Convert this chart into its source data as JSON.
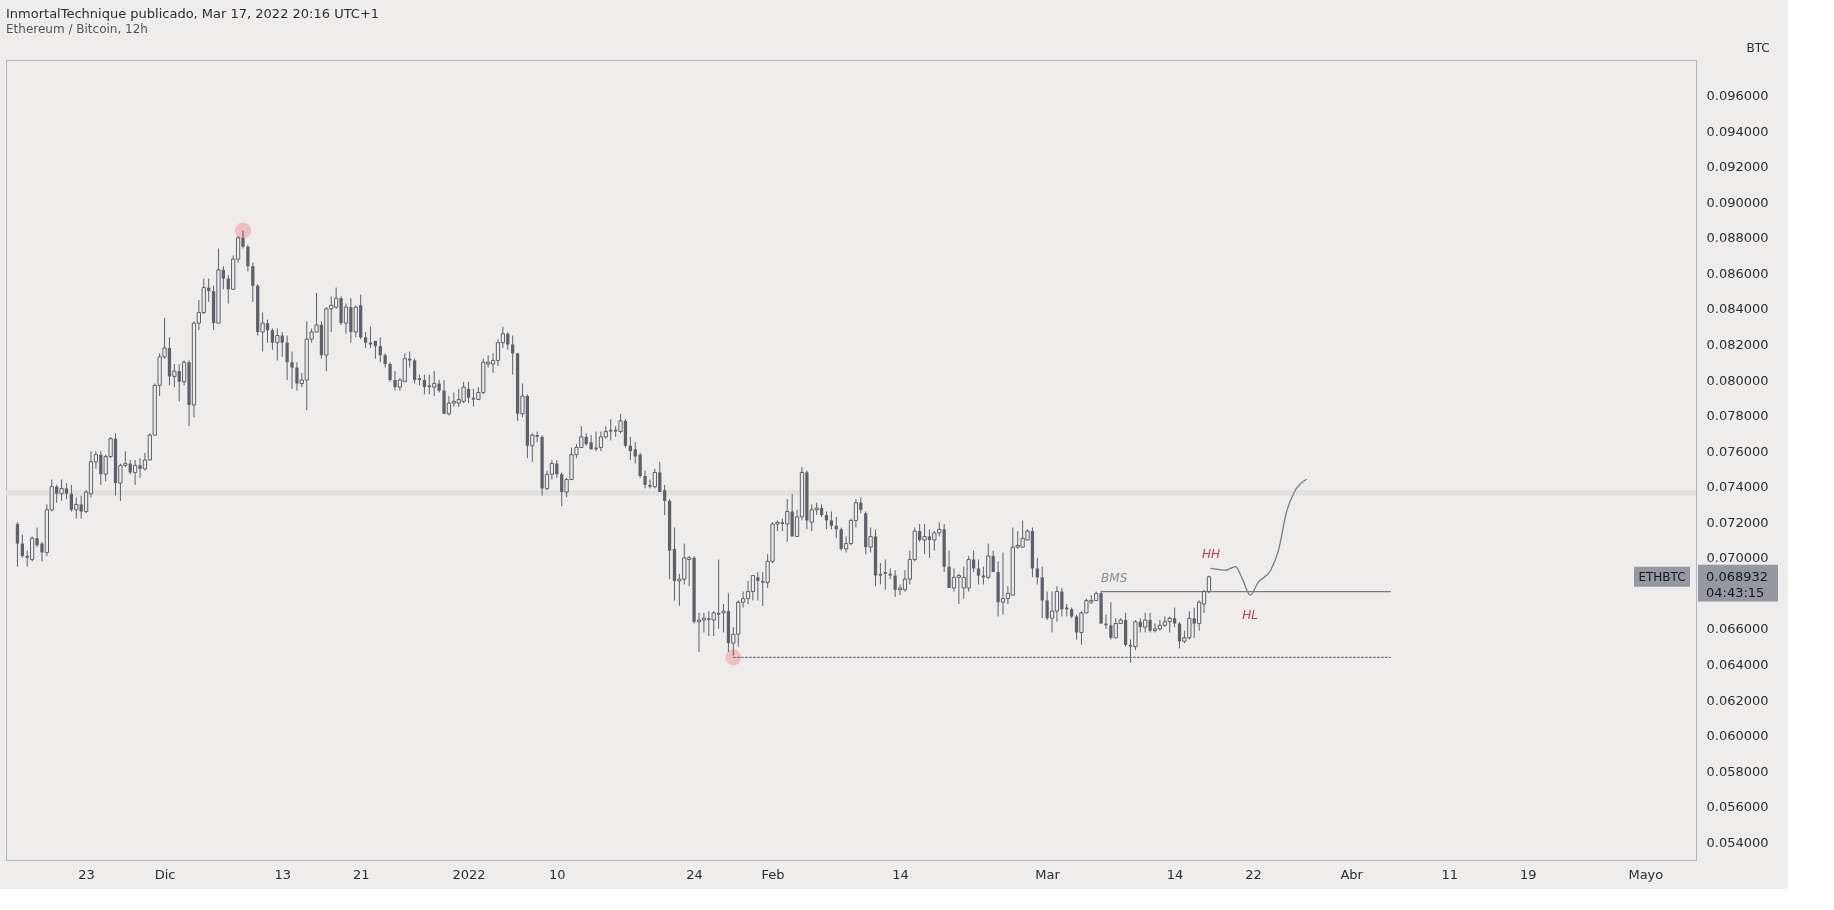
{
  "chart_data": {
    "type": "candlestick",
    "title": "InmortalTechnique publicado, Mar 17, 2022 20:16 UTC+1",
    "subtitle": "Ethereum / Bitcoin, 12h",
    "ylabel": "BTC",
    "color": "#5d606b",
    "grid": false,
    "xlim": [
      "2021-11-14T20:00",
      "2022-05-06T04:00"
    ],
    "xticks": [
      {
        "value": "2021-11-23",
        "label": "23"
      },
      {
        "value": "2021-12-01",
        "label": "Dic"
      },
      {
        "value": "2021-12-13",
        "label": "13"
      },
      {
        "value": "2021-12-21",
        "label": "21"
      },
      {
        "value": "2022-01-01",
        "label": "2022"
      },
      {
        "value": "2022-01-10",
        "label": "10"
      },
      {
        "value": "2022-01-24",
        "label": "24"
      },
      {
        "value": "2022-02-01",
        "label": "Feb"
      },
      {
        "value": "2022-02-14",
        "label": "14"
      },
      {
        "value": "2022-03-01",
        "label": "Mar"
      },
      {
        "value": "2022-03-14",
        "label": "14"
      },
      {
        "value": "2022-03-22",
        "label": "22"
      },
      {
        "value": "2022-04-01",
        "label": "Abr"
      },
      {
        "value": "2022-04-11",
        "label": "11"
      },
      {
        "value": "2022-04-19",
        "label": "19"
      },
      {
        "value": "2022-05-01",
        "label": "Mayo"
      }
    ],
    "ylim": [
      0.053,
      0.098
    ],
    "yticks": [
      {
        "value": 0.054,
        "label": "0.054000"
      },
      {
        "value": 0.056,
        "label": "0.056000"
      },
      {
        "value": 0.058,
        "label": "0.058000"
      },
      {
        "value": 0.06,
        "label": "0.060000"
      },
      {
        "value": 0.062,
        "label": "0.062000"
      },
      {
        "value": 0.064,
        "label": "0.064000"
      },
      {
        "value": 0.066,
        "label": "0.066000"
      },
      {
        "value": 0.07,
        "label": "0.070000"
      },
      {
        "value": 0.072,
        "label": "0.072000"
      },
      {
        "value": 0.074,
        "label": "0.074000"
      },
      {
        "value": 0.076,
        "label": "0.076000"
      },
      {
        "value": 0.078,
        "label": "0.078000"
      },
      {
        "value": 0.08,
        "label": "0.080000"
      },
      {
        "value": 0.082,
        "label": "0.082000"
      },
      {
        "value": 0.084,
        "label": "0.084000"
      },
      {
        "value": 0.086,
        "label": "0.086000"
      },
      {
        "value": 0.088,
        "label": "0.088000"
      },
      {
        "value": 0.09,
        "label": "0.090000"
      },
      {
        "value": 0.092,
        "label": "0.092000"
      },
      {
        "value": 0.094,
        "label": "0.094000"
      },
      {
        "value": 0.096,
        "label": "0.096000"
      }
    ],
    "bands": [
      {
        "axis": "y",
        "from": 0.0735,
        "to": 0.0738,
        "color": "#e2e1e0"
      }
    ],
    "annotations": [
      {
        "text": "BMS",
        "x": "2022-03-06T12:00",
        "y": 0.0681
      },
      {
        "text": "HH",
        "x": "2022-03-17T17:00",
        "y": 0.0694
      },
      {
        "text": "HL",
        "x": "2022-03-21T17:00",
        "y": 0.0679
      },
      "ETHBTC",
      "0.068932",
      "04:43:15"
    ],
    "series": [
      {
        "type": "scatter",
        "marker": "circle",
        "color": "#f2b3b3",
        "x": [
          "2021-12-09T00:00",
          "2022-01-28T00:00"
        ],
        "values": [
          0.0884,
          0.0644
        ]
      },
      {
        "type": "line",
        "color": "#787b86",
        "x": [
          "2022-03-06T12:00",
          "2022-04-05T00:00"
        ],
        "values": [
          0.0681,
          0.0681
        ]
      },
      {
        "type": "line",
        "color": "#787b86",
        "line_style": "dotted",
        "x": [
          "2022-01-28T00:00",
          "2022-04-05T00:00"
        ],
        "values": [
          0.0644,
          0.0644
        ]
      },
      {
        "type": "line",
        "color": "#787b86",
        "x": [
          "2022-03-17T17:00",
          "2022-03-19T05:00",
          "2022-03-20T05:00",
          "2022-03-20T22:00",
          "2022-03-21T17:00",
          "2022-03-22T12:00",
          "2022-03-23T19:00",
          "2022-03-24T14:00",
          "2022-03-25T10:00",
          "2022-03-26T05:00",
          "2022-03-27T10:00"
        ],
        "values": [
          0.0694,
          0.0693,
          0.0695,
          0.0688,
          0.0679,
          0.0686,
          0.0693,
          0.0704,
          0.0726,
          0.0737,
          0.0744
        ]
      }
    ],
    "x": [
      "2021-11-16T00:00",
      "2021-11-16T12:00",
      "2021-11-17T00:00",
      "2021-11-17T12:00",
      "2021-11-18T00:00",
      "2021-11-18T12:00",
      "2021-11-19T00:00",
      "2021-11-19T12:00",
      "2021-11-20T00:00",
      "2021-11-20T12:00",
      "2021-11-21T00:00",
      "2021-11-21T12:00",
      "2021-11-22T00:00",
      "2021-11-22T12:00",
      "2021-11-23T00:00",
      "2021-11-23T12:00",
      "2021-11-24T00:00",
      "2021-11-24T12:00",
      "2021-11-25T00:00",
      "2021-11-25T12:00",
      "2021-11-26T00:00",
      "2021-11-26T12:00",
      "2021-11-27T00:00",
      "2021-11-27T12:00",
      "2021-11-28T00:00",
      "2021-11-28T12:00",
      "2021-11-29T00:00",
      "2021-11-29T12:00",
      "2021-11-30T00:00",
      "2021-11-30T12:00",
      "2021-12-01T00:00",
      "2021-12-01T12:00",
      "2021-12-02T00:00",
      "2021-12-02T12:00",
      "2021-12-03T00:00",
      "2021-12-03T12:00",
      "2021-12-04T00:00",
      "2021-12-04T12:00",
      "2021-12-05T00:00",
      "2021-12-05T12:00",
      "2021-12-06T00:00",
      "2021-12-06T12:00",
      "2021-12-07T00:00",
      "2021-12-07T12:00",
      "2021-12-08T00:00",
      "2021-12-08T12:00",
      "2021-12-09T00:00",
      "2021-12-09T12:00",
      "2021-12-10T00:00",
      "2021-12-10T12:00",
      "2021-12-11T00:00",
      "2021-12-11T12:00",
      "2021-12-12T00:00",
      "2021-12-12T12:00",
      "2021-12-13T00:00",
      "2021-12-13T12:00",
      "2021-12-14T00:00",
      "2021-12-14T12:00",
      "2021-12-15T00:00",
      "2021-12-15T12:00",
      "2021-12-16T00:00",
      "2021-12-16T12:00",
      "2021-12-17T00:00",
      "2021-12-17T12:00",
      "2021-12-18T00:00",
      "2021-12-18T12:00",
      "2021-12-19T00:00",
      "2021-12-19T12:00",
      "2021-12-20T00:00",
      "2021-12-20T12:00",
      "2021-12-21T00:00",
      "2021-12-21T12:00",
      "2021-12-22T00:00",
      "2021-12-22T12:00",
      "2021-12-23T00:00",
      "2021-12-23T12:00",
      "2021-12-24T00:00",
      "2021-12-24T12:00",
      "2021-12-25T00:00",
      "2021-12-25T12:00",
      "2021-12-26T00:00",
      "2021-12-26T12:00",
      "2021-12-27T00:00",
      "2021-12-27T12:00",
      "2021-12-28T00:00",
      "2021-12-28T12:00",
      "2021-12-29T00:00",
      "2021-12-29T12:00",
      "2021-12-30T00:00",
      "2021-12-30T12:00",
      "2021-12-31T00:00",
      "2021-12-31T12:00",
      "2022-01-01T00:00",
      "2022-01-01T12:00",
      "2022-01-02T00:00",
      "2022-01-02T12:00",
      "2022-01-03T00:00",
      "2022-01-03T12:00",
      "2022-01-04T00:00",
      "2022-01-04T12:00",
      "2022-01-05T00:00",
      "2022-01-05T12:00",
      "2022-01-06T00:00",
      "2022-01-06T12:00",
      "2022-01-07T00:00",
      "2022-01-07T12:00",
      "2022-01-08T00:00",
      "2022-01-08T12:00",
      "2022-01-09T00:00",
      "2022-01-09T12:00",
      "2022-01-10T00:00",
      "2022-01-10T12:00",
      "2022-01-11T00:00",
      "2022-01-11T12:00",
      "2022-01-12T00:00",
      "2022-01-12T12:00",
      "2022-01-13T00:00",
      "2022-01-13T12:00",
      "2022-01-14T00:00",
      "2022-01-14T12:00",
      "2022-01-15T00:00",
      "2022-01-15T12:00",
      "2022-01-16T00:00",
      "2022-01-16T12:00",
      "2022-01-17T00:00",
      "2022-01-17T12:00",
      "2022-01-18T00:00",
      "2022-01-18T12:00",
      "2022-01-19T00:00",
      "2022-01-19T12:00",
      "2022-01-20T00:00",
      "2022-01-20T12:00",
      "2022-01-21T00:00",
      "2022-01-21T12:00",
      "2022-01-22T00:00",
      "2022-01-22T12:00",
      "2022-01-23T00:00",
      "2022-01-23T12:00",
      "2022-01-24T00:00",
      "2022-01-24T12:00",
      "2022-01-25T00:00",
      "2022-01-25T12:00",
      "2022-01-26T00:00",
      "2022-01-26T12:00",
      "2022-01-27T00:00",
      "2022-01-27T12:00",
      "2022-01-28T00:00",
      "2022-01-28T12:00",
      "2022-01-29T00:00",
      "2022-01-29T12:00",
      "2022-01-30T00:00",
      "2022-01-30T12:00",
      "2022-01-31T00:00",
      "2022-01-31T12:00",
      "2022-02-01T00:00",
      "2022-02-01T12:00",
      "2022-02-02T00:00",
      "2022-02-02T12:00",
      "2022-02-03T00:00",
      "2022-02-03T12:00",
      "2022-02-04T00:00",
      "2022-02-04T12:00",
      "2022-02-05T00:00",
      "2022-02-05T12:00",
      "2022-02-06T00:00",
      "2022-02-06T12:00",
      "2022-02-07T00:00",
      "2022-02-07T12:00",
      "2022-02-08T00:00",
      "2022-02-08T12:00",
      "2022-02-09T00:00",
      "2022-02-09T12:00",
      "2022-02-10T00:00",
      "2022-02-10T12:00",
      "2022-02-11T00:00",
      "2022-02-11T12:00",
      "2022-02-12T00:00",
      "2022-02-12T12:00",
      "2022-02-13T00:00",
      "2022-02-13T12:00",
      "2022-02-14T00:00",
      "2022-02-14T12:00",
      "2022-02-15T00:00",
      "2022-02-15T12:00",
      "2022-02-16T00:00",
      "2022-02-16T12:00",
      "2022-02-17T00:00",
      "2022-02-17T12:00",
      "2022-02-18T00:00",
      "2022-02-18T12:00",
      "2022-02-19T00:00",
      "2022-02-19T12:00",
      "2022-02-20T00:00",
      "2022-02-20T12:00",
      "2022-02-21T00:00",
      "2022-02-21T12:00",
      "2022-02-22T00:00",
      "2022-02-22T12:00",
      "2022-02-23T00:00",
      "2022-02-23T12:00",
      "2022-02-24T00:00",
      "2022-02-24T12:00",
      "2022-02-25T00:00",
      "2022-02-25T12:00",
      "2022-02-26T00:00",
      "2022-02-26T12:00",
      "2022-02-27T00:00",
      "2022-02-27T12:00",
      "2022-02-28T00:00",
      "2022-02-28T12:00",
      "2022-03-01T00:00",
      "2022-03-01T12:00",
      "2022-03-02T00:00",
      "2022-03-02T12:00",
      "2022-03-03T00:00",
      "2022-03-03T12:00",
      "2022-03-04T00:00",
      "2022-03-04T12:00",
      "2022-03-05T00:00",
      "2022-03-05T12:00",
      "2022-03-06T00:00",
      "2022-03-06T12:00",
      "2022-03-07T00:00",
      "2022-03-07T12:00",
      "2022-03-08T00:00",
      "2022-03-08T12:00",
      "2022-03-09T00:00",
      "2022-03-09T12:00",
      "2022-03-10T00:00",
      "2022-03-10T12:00",
      "2022-03-11T00:00",
      "2022-03-11T12:00",
      "2022-03-12T00:00",
      "2022-03-12T12:00",
      "2022-03-13T00:00",
      "2022-03-13T12:00",
      "2022-03-14T00:00",
      "2022-03-14T12:00",
      "2022-03-15T00:00",
      "2022-03-15T12:00",
      "2022-03-16T00:00",
      "2022-03-16T12:00",
      "2022-03-17T00:00",
      "2022-03-17T12:00"
    ],
    "ohlc": [
      [
        0.0719,
        0.072,
        0.0695,
        0.0708
      ],
      [
        0.0708,
        0.0713,
        0.07,
        0.0701
      ],
      [
        0.0701,
        0.0704,
        0.0695,
        0.07
      ],
      [
        0.0699,
        0.0712,
        0.0698,
        0.0711
      ],
      [
        0.0711,
        0.0717,
        0.0706,
        0.0707
      ],
      [
        0.0708,
        0.0709,
        0.0698,
        0.0703
      ],
      [
        0.0703,
        0.073,
        0.0701,
        0.0727
      ],
      [
        0.0727,
        0.0744,
        0.0726,
        0.074
      ],
      [
        0.074,
        0.0741,
        0.0731,
        0.0736
      ],
      [
        0.0736,
        0.0744,
        0.0732,
        0.0739
      ],
      [
        0.0739,
        0.0742,
        0.0733,
        0.0736
      ],
      [
        0.0736,
        0.0741,
        0.0726,
        0.0727
      ],
      [
        0.0727,
        0.0734,
        0.0722,
        0.073
      ],
      [
        0.073,
        0.0735,
        0.0722,
        0.0726
      ],
      [
        0.0726,
        0.0738,
        0.0725,
        0.0737
      ],
      [
        0.0736,
        0.076,
        0.0734,
        0.0754
      ],
      [
        0.0754,
        0.076,
        0.075,
        0.0758
      ],
      [
        0.0758,
        0.076,
        0.0741,
        0.0747
      ],
      [
        0.0747,
        0.0758,
        0.0743,
        0.0757
      ],
      [
        0.0757,
        0.0768,
        0.0756,
        0.0767
      ],
      [
        0.0767,
        0.077,
        0.0735,
        0.0742
      ],
      [
        0.0742,
        0.0753,
        0.0732,
        0.0752
      ],
      [
        0.0752,
        0.076,
        0.0751,
        0.0753
      ],
      [
        0.0753,
        0.0755,
        0.0747,
        0.0748
      ],
      [
        0.0748,
        0.0755,
        0.0741,
        0.0752
      ],
      [
        0.0752,
        0.0756,
        0.0745,
        0.075
      ],
      [
        0.075,
        0.0759,
        0.0749,
        0.0755
      ],
      [
        0.0755,
        0.077,
        0.0755,
        0.0769
      ],
      [
        0.0769,
        0.0798,
        0.0769,
        0.0797
      ],
      [
        0.0797,
        0.0815,
        0.0791,
        0.0813
      ],
      [
        0.0813,
        0.0835,
        0.0812,
        0.0818
      ],
      [
        0.0818,
        0.0824,
        0.0797,
        0.0802
      ],
      [
        0.0802,
        0.0809,
        0.0796,
        0.0805
      ],
      [
        0.0805,
        0.0809,
        0.0788,
        0.0799
      ],
      [
        0.0799,
        0.0811,
        0.0797,
        0.081
      ],
      [
        0.081,
        0.0811,
        0.0774,
        0.0786
      ],
      [
        0.0786,
        0.0833,
        0.0779,
        0.0832
      ],
      [
        0.0832,
        0.0845,
        0.0828,
        0.0838
      ],
      [
        0.0838,
        0.0857,
        0.0837,
        0.0852
      ],
      [
        0.0852,
        0.0857,
        0.0844,
        0.085
      ],
      [
        0.085,
        0.0853,
        0.0828,
        0.0832
      ],
      [
        0.0832,
        0.0874,
        0.0832,
        0.0862
      ],
      [
        0.0862,
        0.0864,
        0.0851,
        0.0857
      ],
      [
        0.0857,
        0.0859,
        0.0843,
        0.0851
      ],
      [
        0.0851,
        0.087,
        0.0851,
        0.0868
      ],
      [
        0.0868,
        0.0881,
        0.0866,
        0.088
      ],
      [
        0.088,
        0.0884,
        0.0874,
        0.0875
      ],
      [
        0.0875,
        0.0876,
        0.0861,
        0.0864
      ],
      [
        0.0864,
        0.0866,
        0.0844,
        0.0853
      ],
      [
        0.0853,
        0.0854,
        0.0825,
        0.0827
      ],
      [
        0.0827,
        0.0838,
        0.0816,
        0.0832
      ],
      [
        0.0832,
        0.0834,
        0.0821,
        0.0828
      ],
      [
        0.0828,
        0.0829,
        0.0817,
        0.0821
      ],
      [
        0.0821,
        0.0829,
        0.0811,
        0.0825
      ],
      [
        0.0825,
        0.0827,
        0.0813,
        0.0821
      ],
      [
        0.0821,
        0.0825,
        0.08,
        0.081
      ],
      [
        0.081,
        0.0816,
        0.0795,
        0.0807
      ],
      [
        0.0807,
        0.081,
        0.0794,
        0.0798
      ],
      [
        0.0798,
        0.0804,
        0.0796,
        0.08
      ],
      [
        0.08,
        0.0833,
        0.0783,
        0.0823
      ],
      [
        0.0823,
        0.0829,
        0.0821,
        0.0827
      ],
      [
        0.0827,
        0.0849,
        0.0827,
        0.0831
      ],
      [
        0.0831,
        0.0833,
        0.0812,
        0.0814
      ],
      [
        0.0814,
        0.0841,
        0.0805,
        0.084
      ],
      [
        0.084,
        0.0847,
        0.0827,
        0.0842
      ],
      [
        0.0841,
        0.0852,
        0.084,
        0.0846
      ],
      [
        0.0846,
        0.0847,
        0.0831,
        0.0832
      ],
      [
        0.0832,
        0.0843,
        0.0826,
        0.0841
      ],
      [
        0.0841,
        0.0846,
        0.0821,
        0.0827
      ],
      [
        0.0827,
        0.0842,
        0.0824,
        0.0841
      ],
      [
        0.0842,
        0.0848,
        0.0823,
        0.0824
      ],
      [
        0.0824,
        0.0827,
        0.0818,
        0.0821
      ],
      [
        0.0821,
        0.083,
        0.0818,
        0.082
      ],
      [
        0.0822,
        0.0822,
        0.0812,
        0.0819
      ],
      [
        0.0819,
        0.0824,
        0.081,
        0.0814
      ],
      [
        0.0814,
        0.0815,
        0.0807,
        0.0809
      ],
      [
        0.0809,
        0.081,
        0.0799,
        0.08
      ],
      [
        0.08,
        0.0805,
        0.0794,
        0.0796
      ],
      [
        0.0796,
        0.0801,
        0.0794,
        0.08
      ],
      [
        0.0799,
        0.0815,
        0.0799,
        0.0812
      ],
      [
        0.0812,
        0.0816,
        0.0807,
        0.0811
      ],
      [
        0.0811,
        0.0812,
        0.0798,
        0.08
      ],
      [
        0.0801,
        0.0803,
        0.0797,
        0.08
      ],
      [
        0.08,
        0.0803,
        0.0792,
        0.0796
      ],
      [
        0.0797,
        0.0803,
        0.0792,
        0.0796
      ],
      [
        0.0796,
        0.0805,
        0.0791,
        0.0798
      ],
      [
        0.0798,
        0.08,
        0.0793,
        0.0794
      ],
      [
        0.0794,
        0.08,
        0.0781,
        0.0781
      ],
      [
        0.0781,
        0.0791,
        0.078,
        0.0787
      ],
      [
        0.0787,
        0.0793,
        0.0785,
        0.0788
      ],
      [
        0.0787,
        0.0795,
        0.0785,
        0.0789
      ],
      [
        0.0788,
        0.0799,
        0.0787,
        0.0796
      ],
      [
        0.0795,
        0.0799,
        0.0787,
        0.079
      ],
      [
        0.079,
        0.0795,
        0.0785,
        0.0789
      ],
      [
        0.0789,
        0.0796,
        0.0789,
        0.0793
      ],
      [
        0.0793,
        0.0812,
        0.0792,
        0.081
      ],
      [
        0.0809,
        0.0814,
        0.0807,
        0.081
      ],
      [
        0.0809,
        0.0815,
        0.0804,
        0.0811
      ],
      [
        0.0811,
        0.0823,
        0.0808,
        0.0821
      ],
      [
        0.0821,
        0.083,
        0.0818,
        0.0826
      ],
      [
        0.0826,
        0.0827,
        0.0817,
        0.082
      ],
      [
        0.082,
        0.0825,
        0.0803,
        0.0815
      ],
      [
        0.0815,
        0.0815,
        0.0777,
        0.0781
      ],
      [
        0.0781,
        0.0798,
        0.0779,
        0.0791
      ],
      [
        0.0791,
        0.0792,
        0.0756,
        0.0763
      ],
      [
        0.0763,
        0.077,
        0.0754,
        0.0769
      ],
      [
        0.0769,
        0.0771,
        0.0765,
        0.0768
      ],
      [
        0.0768,
        0.0769,
        0.0735,
        0.0739
      ],
      [
        0.0739,
        0.0749,
        0.0738,
        0.0747
      ],
      [
        0.0747,
        0.0755,
        0.0744,
        0.0753
      ],
      [
        0.0753,
        0.0755,
        0.0745,
        0.0747
      ],
      [
        0.0747,
        0.0748,
        0.0729,
        0.0737
      ],
      [
        0.0737,
        0.0745,
        0.0734,
        0.0744
      ],
      [
        0.0744,
        0.0762,
        0.0744,
        0.0758
      ],
      [
        0.0758,
        0.0764,
        0.0756,
        0.0762
      ],
      [
        0.0762,
        0.0774,
        0.0762,
        0.0768
      ],
      [
        0.0768,
        0.077,
        0.0763,
        0.0764
      ],
      [
        0.0765,
        0.0769,
        0.0761,
        0.0761
      ],
      [
        0.0762,
        0.0771,
        0.076,
        0.0761
      ],
      [
        0.0762,
        0.0771,
        0.076,
        0.0768
      ],
      [
        0.0768,
        0.0774,
        0.0767,
        0.0771
      ],
      [
        0.0772,
        0.0778,
        0.0766,
        0.0771
      ],
      [
        0.0772,
        0.0774,
        0.0768,
        0.0771
      ],
      [
        0.0771,
        0.0781,
        0.077,
        0.0777
      ],
      [
        0.0777,
        0.0778,
        0.0762,
        0.0763
      ],
      [
        0.0763,
        0.0768,
        0.0755,
        0.076
      ],
      [
        0.0761,
        0.0765,
        0.0753,
        0.0757
      ],
      [
        0.0758,
        0.0759,
        0.0745,
        0.0746
      ],
      [
        0.0746,
        0.0749,
        0.0739,
        0.0741
      ],
      [
        0.0741,
        0.0744,
        0.0739,
        0.074
      ],
      [
        0.074,
        0.075,
        0.0739,
        0.0748
      ],
      [
        0.0748,
        0.0754,
        0.0737,
        0.0737
      ],
      [
        0.0738,
        0.0741,
        0.0724,
        0.0732
      ],
      [
        0.0732,
        0.0733,
        0.0688,
        0.0704
      ],
      [
        0.0705,
        0.0717,
        0.0676,
        0.0687
      ],
      [
        0.0687,
        0.0691,
        0.0673,
        0.0688
      ],
      [
        0.0688,
        0.0708,
        0.0685,
        0.07
      ],
      [
        0.0699,
        0.0701,
        0.0684,
        0.07
      ],
      [
        0.07,
        0.0701,
        0.0663,
        0.0664
      ],
      [
        0.0664,
        0.0669,
        0.0647,
        0.0665
      ],
      [
        0.0665,
        0.0669,
        0.0658,
        0.0666
      ],
      [
        0.0666,
        0.067,
        0.0656,
        0.0665
      ],
      [
        0.0665,
        0.067,
        0.0656,
        0.0669
      ],
      [
        0.0669,
        0.0699,
        0.066,
        0.0668
      ],
      [
        0.0669,
        0.0674,
        0.0658,
        0.067
      ],
      [
        0.067,
        0.068,
        0.0647,
        0.0652
      ],
      [
        0.0652,
        0.0661,
        0.0645,
        0.0657
      ],
      [
        0.0657,
        0.0676,
        0.065,
        0.0675
      ],
      [
        0.0675,
        0.0681,
        0.0672,
        0.0677
      ],
      [
        0.0677,
        0.0687,
        0.0674,
        0.0681
      ],
      [
        0.0681,
        0.069,
        0.0676,
        0.069
      ],
      [
        0.0689,
        0.0692,
        0.0676,
        0.0687
      ],
      [
        0.0687,
        0.0692,
        0.0673,
        0.0686
      ],
      [
        0.0686,
        0.0702,
        0.0683,
        0.0698
      ],
      [
        0.0698,
        0.072,
        0.0697,
        0.0719
      ],
      [
        0.0719,
        0.0721,
        0.0715,
        0.072
      ],
      [
        0.072,
        0.0722,
        0.0715,
        0.0719
      ],
      [
        0.0719,
        0.0733,
        0.0709,
        0.0726
      ],
      [
        0.0726,
        0.0736,
        0.0712,
        0.0712
      ],
      [
        0.0712,
        0.0727,
        0.0712,
        0.0723
      ],
      [
        0.0723,
        0.0751,
        0.0721,
        0.0748
      ],
      [
        0.0748,
        0.0749,
        0.0716,
        0.0721
      ],
      [
        0.072,
        0.073,
        0.0715,
        0.0727
      ],
      [
        0.0727,
        0.0731,
        0.0724,
        0.0728
      ],
      [
        0.0728,
        0.073,
        0.0723,
        0.0724
      ],
      [
        0.0724,
        0.0726,
        0.0716,
        0.0721
      ],
      [
        0.0721,
        0.0726,
        0.0716,
        0.0718
      ],
      [
        0.0718,
        0.0723,
        0.0711,
        0.0716
      ],
      [
        0.0716,
        0.0717,
        0.0704,
        0.0705
      ],
      [
        0.0705,
        0.0712,
        0.0703,
        0.0708
      ],
      [
        0.0708,
        0.0722,
        0.0707,
        0.0721
      ],
      [
        0.0721,
        0.0733,
        0.0717,
        0.0731
      ],
      [
        0.0731,
        0.0734,
        0.0725,
        0.0727
      ],
      [
        0.0725,
        0.0726,
        0.0702,
        0.0706
      ],
      [
        0.0706,
        0.0717,
        0.0703,
        0.0712
      ],
      [
        0.0712,
        0.0716,
        0.0684,
        0.069
      ],
      [
        0.0691,
        0.0697,
        0.0685,
        0.069
      ],
      [
        0.0692,
        0.0699,
        0.0682,
        0.0691
      ],
      [
        0.0691,
        0.0694,
        0.0688,
        0.069
      ],
      [
        0.069,
        0.0693,
        0.0678,
        0.0682
      ],
      [
        0.0682,
        0.0685,
        0.0679,
        0.0683
      ],
      [
        0.0682,
        0.0693,
        0.0681,
        0.0688
      ],
      [
        0.0688,
        0.0704,
        0.0685,
        0.0699
      ],
      [
        0.0699,
        0.0717,
        0.0698,
        0.0715
      ],
      [
        0.0715,
        0.0719,
        0.0709,
        0.071
      ],
      [
        0.071,
        0.0719,
        0.0702,
        0.0712
      ],
      [
        0.0712,
        0.0716,
        0.07,
        0.071
      ],
      [
        0.071,
        0.0715,
        0.0704,
        0.0714
      ],
      [
        0.0714,
        0.072,
        0.0712,
        0.0716
      ],
      [
        0.0716,
        0.0719,
        0.0692,
        0.0695
      ],
      [
        0.0695,
        0.0704,
        0.0683,
        0.0683
      ],
      [
        0.0683,
        0.0694,
        0.0681,
        0.0689
      ],
      [
        0.0689,
        0.0691,
        0.0674,
        0.069
      ],
      [
        0.0683,
        0.0695,
        0.0677,
        0.0689
      ],
      [
        0.0683,
        0.0701,
        0.0681,
        0.0699
      ],
      [
        0.0699,
        0.0704,
        0.0692,
        0.0694
      ],
      [
        0.0694,
        0.0699,
        0.0685,
        0.069
      ],
      [
        0.069,
        0.0695,
        0.0685,
        0.0689
      ],
      [
        0.0689,
        0.0708,
        0.0688,
        0.0701
      ],
      [
        0.0701,
        0.0704,
        0.0692,
        0.0692
      ],
      [
        0.0692,
        0.0698,
        0.0667,
        0.0675
      ],
      [
        0.0675,
        0.0703,
        0.0668,
        0.0677
      ],
      [
        0.0677,
        0.0684,
        0.0674,
        0.068
      ],
      [
        0.0679,
        0.0717,
        0.0679,
        0.0706
      ],
      [
        0.0706,
        0.0715,
        0.0705,
        0.0707
      ],
      [
        0.0706,
        0.0721,
        0.0706,
        0.0711
      ],
      [
        0.071,
        0.0716,
        0.071,
        0.0715
      ],
      [
        0.0715,
        0.0717,
        0.0689,
        0.0694
      ],
      [
        0.0694,
        0.07,
        0.0685,
        0.0689
      ],
      [
        0.0689,
        0.0695,
        0.0666,
        0.0676
      ],
      [
        0.0676,
        0.0681,
        0.0665,
        0.0666
      ],
      [
        0.0666,
        0.0681,
        0.0658,
        0.067
      ],
      [
        0.067,
        0.0684,
        0.0664,
        0.0681
      ],
      [
        0.0681,
        0.0683,
        0.0667,
        0.0671
      ],
      [
        0.0672,
        0.0674,
        0.0667,
        0.0671
      ],
      [
        0.0671,
        0.0672,
        0.0666,
        0.0667
      ],
      [
        0.0667,
        0.0668,
        0.0654,
        0.0658
      ],
      [
        0.0658,
        0.067,
        0.0651,
        0.0669
      ],
      [
        0.0669,
        0.0677,
        0.0669,
        0.0676
      ],
      [
        0.0675,
        0.0679,
        0.0674,
        0.0676
      ],
      [
        0.0676,
        0.0681,
        0.0676,
        0.068
      ],
      [
        0.068,
        0.0681,
        0.0663,
        0.0663
      ],
      [
        0.0663,
        0.0668,
        0.066,
        0.0662
      ],
      [
        0.0662,
        0.0675,
        0.0654,
        0.0655
      ],
      [
        0.0655,
        0.0666,
        0.0655,
        0.0663
      ],
      [
        0.0663,
        0.0666,
        0.0663,
        0.0665
      ],
      [
        0.0665,
        0.0669,
        0.065,
        0.0651
      ],
      [
        0.0651,
        0.0654,
        0.0641,
        0.065
      ],
      [
        0.065,
        0.0665,
        0.0648,
        0.0664
      ],
      [
        0.0664,
        0.0666,
        0.0658,
        0.0661
      ],
      [
        0.0661,
        0.0669,
        0.0658,
        0.0665
      ],
      [
        0.0665,
        0.0669,
        0.0658,
        0.0659
      ],
      [
        0.0659,
        0.0663,
        0.0658,
        0.066
      ],
      [
        0.066,
        0.0665,
        0.0659,
        0.0662
      ],
      [
        0.0662,
        0.0667,
        0.0661,
        0.0664
      ],
      [
        0.0664,
        0.0667,
        0.0658,
        0.0666
      ],
      [
        0.0666,
        0.0672,
        0.0661,
        0.0663
      ],
      [
        0.0663,
        0.0664,
        0.0649,
        0.0653
      ],
      [
        0.0653,
        0.0659,
        0.0652,
        0.0655
      ],
      [
        0.0655,
        0.067,
        0.0654,
        0.0666
      ],
      [
        0.0666,
        0.0672,
        0.0655,
        0.0663
      ],
      [
        0.0663,
        0.0676,
        0.0659,
        0.0675
      ],
      [
        0.0674,
        0.0682,
        0.0669,
        0.0681
      ],
      [
        0.0681,
        0.069,
        0.068,
        0.068932
      ]
    ]
  }
}
